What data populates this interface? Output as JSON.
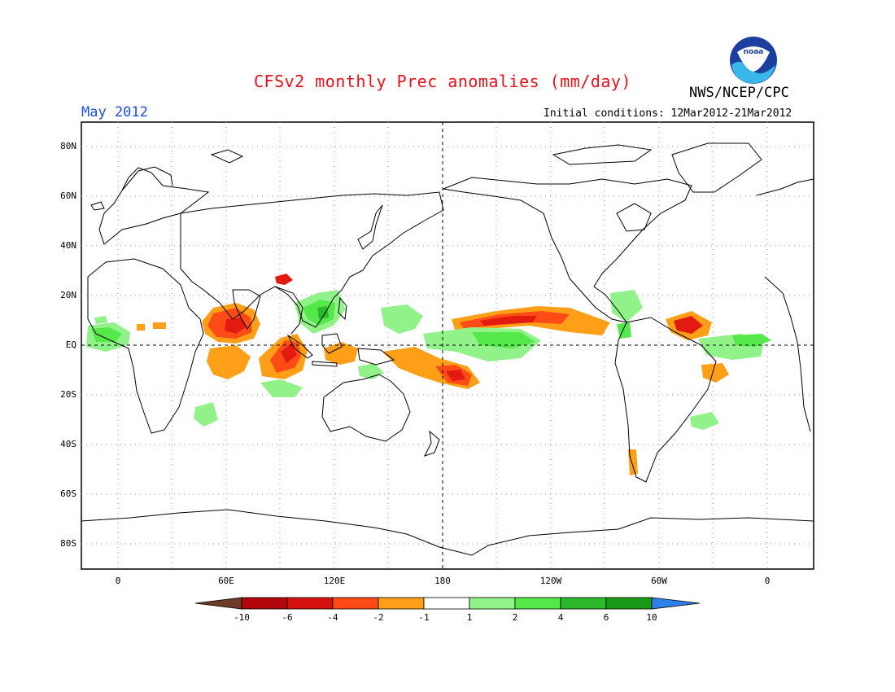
{
  "header": {
    "title": "CFSv2 monthly Prec anomalies (mm/day)",
    "agency": "NWS/NCEP/CPC",
    "month": "May 2012",
    "initial_conditions": "Initial conditions: 12Mar2012-21Mar2012",
    "logo_text": "noaa"
  },
  "axes": {
    "lat_labels": [
      "80N",
      "60N",
      "40N",
      "20N",
      "EQ",
      "20S",
      "40S",
      "60S",
      "80S"
    ],
    "lon_labels": [
      "0",
      "60E",
      "120E",
      "180",
      "120W",
      "60W",
      "0"
    ]
  },
  "colorbar": {
    "ticks": [
      "-10",
      "-6",
      "-4",
      "-2",
      "-1",
      "1",
      "2",
      "4",
      "6",
      "10"
    ],
    "colors": [
      "#6e3b28",
      "#b2060c",
      "#d51110",
      "#ff4c16",
      "#ff9f18",
      "#ffffff",
      "#91f28a",
      "#55e84a",
      "#2bb82a",
      "#1a9b18",
      "#2f7fe8"
    ]
  },
  "colors": {
    "title": "#e8111a",
    "month": "#1f4fe0",
    "deep_red": "#b2060c",
    "red": "#e31a10",
    "orange_red": "#ff4c16",
    "orange": "#ff9f18",
    "light_green": "#91f28a",
    "green": "#55e84a",
    "dark_green": "#2bb82a"
  }
}
